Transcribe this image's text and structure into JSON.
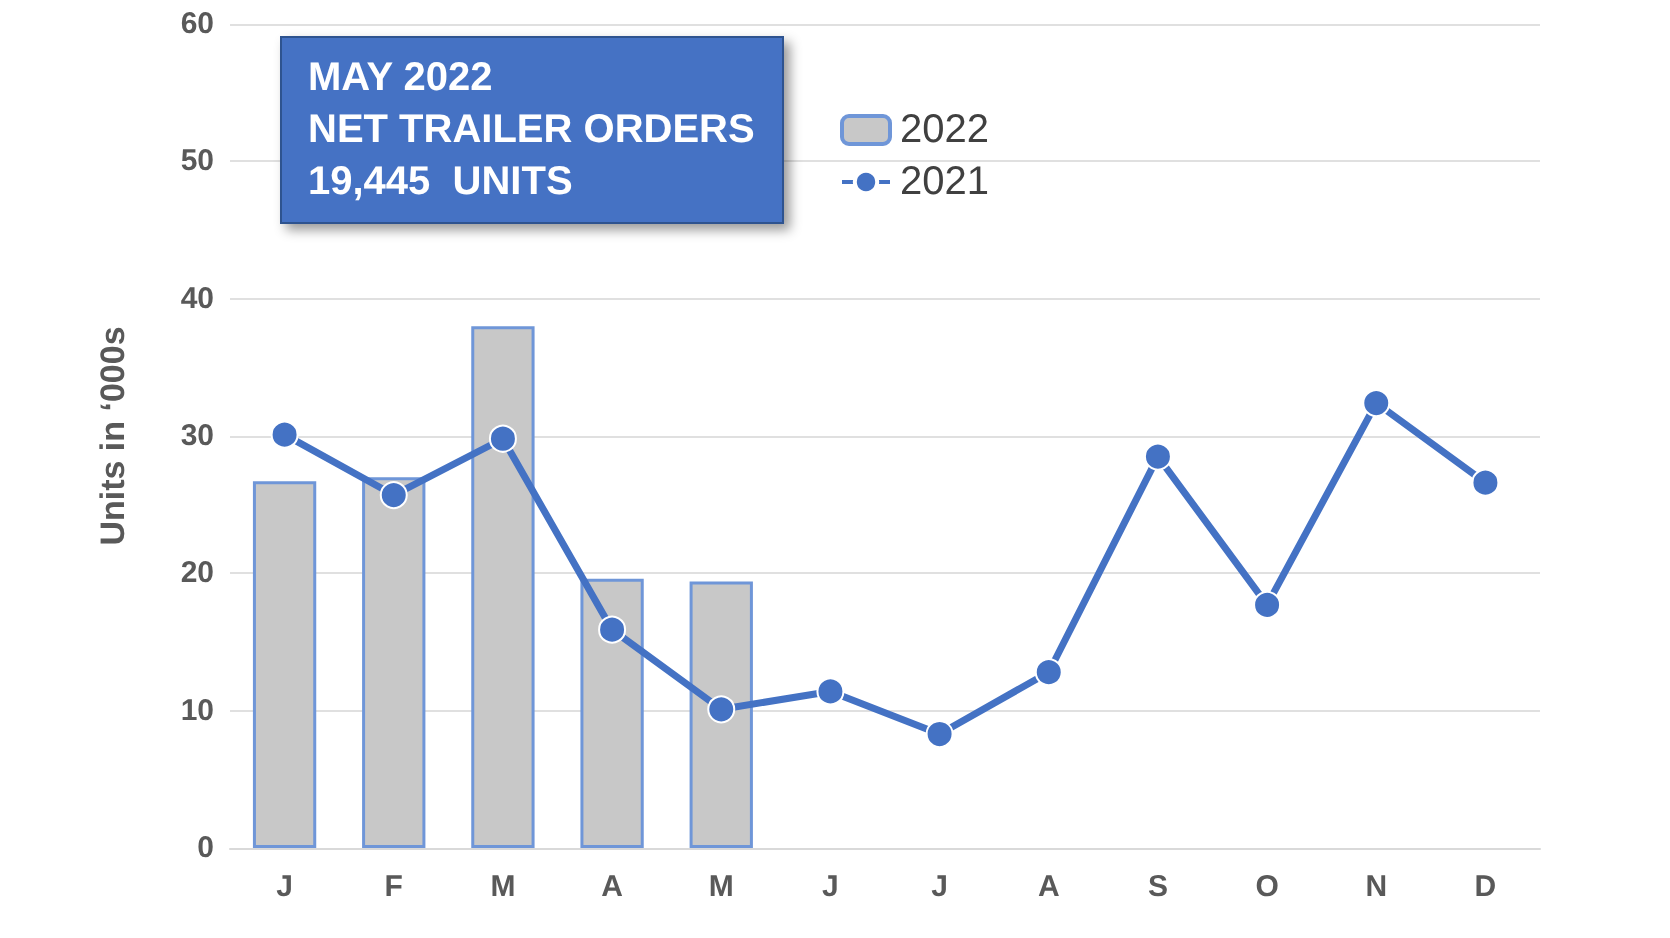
{
  "chart_data": {
    "type": "bar",
    "title": "MAY 2022\nNET TRAILER ORDERS\n19,445  UNITS",
    "ylabel": "Units in ‘000s",
    "categories": [
      "J",
      "F",
      "M",
      "A",
      "M",
      "J",
      "J",
      "A",
      "S",
      "O",
      "N",
      "D"
    ],
    "series": [
      {
        "name": "2022",
        "color": "#c8c8c8",
        "values": [
          26.7,
          27.0,
          38.0,
          19.6,
          19.4,
          null,
          null,
          null,
          null,
          null,
          null,
          null
        ]
      },
      {
        "name": "2021",
        "type": "line",
        "color": "#4472c4",
        "values": [
          30.1,
          25.7,
          29.8,
          15.9,
          10.1,
          11.4,
          8.3,
          12.8,
          28.5,
          17.7,
          32.4,
          26.6
        ]
      }
    ],
    "ylim": [
      0,
      60
    ],
    "yticks": [
      0,
      10,
      20,
      30,
      40,
      50,
      60
    ],
    "grid": "y",
    "legend": "top",
    "marker": "circle"
  }
}
